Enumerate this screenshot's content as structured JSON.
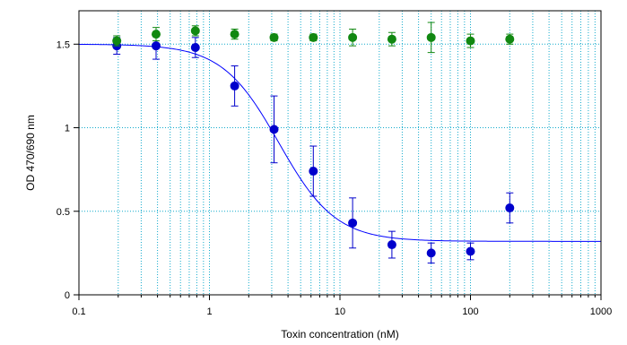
{
  "chart_data": {
    "type": "scatter",
    "xlabel": "Toxin concentration (nM)",
    "ylabel": "OD 470/690 nm",
    "x_scale": "log",
    "xlim": [
      0.1,
      1000
    ],
    "ylim": [
      0,
      1.7
    ],
    "x_ticks": [
      0.1,
      1,
      10,
      100,
      1000
    ],
    "x_tick_labels": [
      "0.1",
      "1",
      "10",
      "100",
      "1000"
    ],
    "y_ticks": [
      0,
      0.5,
      1,
      1.5
    ],
    "y_tick_labels": [
      "0",
      "0.5",
      "1",
      "1.5"
    ],
    "grid": true,
    "series": [
      {
        "color": "#0000cc",
        "line_color": "#0000ff",
        "x": [
          0.195,
          0.39,
          0.78,
          1.56,
          3.125,
          6.25,
          12.5,
          25,
          50,
          100,
          200
        ],
        "y": [
          1.49,
          1.49,
          1.48,
          1.25,
          0.99,
          0.74,
          0.43,
          0.3,
          0.25,
          0.26,
          0.52
        ],
        "error": [
          0.05,
          0.08,
          0.06,
          0.12,
          0.2,
          0.15,
          0.15,
          0.08,
          0.06,
          0.05,
          0.09
        ],
        "fit": {
          "top": 1.5,
          "bottom": 0.32,
          "ec50": 3.4,
          "hill": 2.0
        }
      },
      {
        "color": "#118811",
        "x": [
          0.195,
          0.39,
          0.78,
          1.56,
          3.125,
          6.25,
          12.5,
          25,
          50,
          100,
          200
        ],
        "y": [
          1.52,
          1.56,
          1.58,
          1.56,
          1.54,
          1.54,
          1.54,
          1.53,
          1.54,
          1.52,
          1.53
        ],
        "error": [
          0.03,
          0.04,
          0.03,
          0.03,
          0.02,
          0.02,
          0.05,
          0.04,
          0.09,
          0.04,
          0.03
        ]
      }
    ]
  }
}
